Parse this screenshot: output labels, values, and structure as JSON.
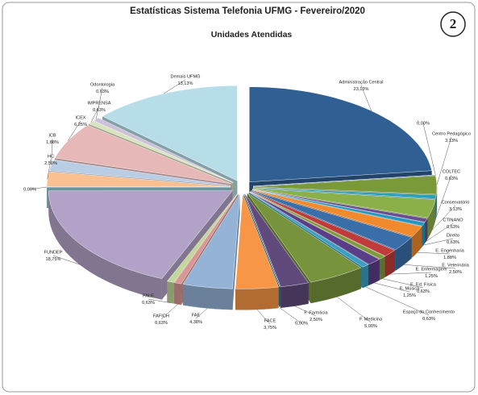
{
  "chart_data": {
    "type": "pie3d",
    "title": "Estatísticas Sistema Telefonia UFMG - Fevereiro/2020",
    "subtitle": "Unidades Atendidas",
    "badge": "2",
    "categories": [
      "Administração Central",
      null,
      "Centro Pedagógico",
      "COLTEC",
      "Conservatório",
      "CTINANO",
      "Direito",
      "E. Engenharia",
      "E. Veterinária",
      "E. Enfermagem",
      "E. Ed. Física",
      "E. Música",
      "Espaço do Conhecimento",
      "F. Medicina",
      "F. Farmácia",
      null,
      "FACE",
      "FAE",
      "FAFICH",
      "FALE",
      "FUNDEP",
      null,
      "HC",
      "ICB",
      "ICEX",
      "IMPRENSA",
      "Odontologia",
      "Demais UFMG"
    ],
    "values": [
      23.13,
      0,
      3.13,
      0.63,
      3.13,
      0.63,
      0.63,
      1.88,
      2.5,
      1.25,
      0.63,
      1.25,
      0.63,
      5.0,
      2.5,
      0,
      3.75,
      4.38,
      0.63,
      0.63,
      18.75,
      0,
      2.5,
      1.88,
      6.25,
      0.63,
      0.63,
      13.13
    ],
    "value_labels": [
      "23,13%",
      "0,00%",
      "3,13%",
      "0,63%",
      "3,13%",
      "0,63%",
      "0,63%",
      "1,88%",
      "2,50%",
      "1,25%",
      "0,63%",
      "1,25%",
      "0,63%",
      "5,00%",
      "2,50%",
      "0,00%",
      "3,75%",
      "4,38%",
      "0,63%",
      "0,63%",
      "18,75%",
      "0,00%",
      "2,50%",
      "1,88%",
      "6,25%",
      "0,63%",
      "0,63%",
      "13,13%"
    ],
    "colors": [
      "#2f5f93",
      "#4f81bd",
      "#7a9a3a",
      "#2aa0b8",
      "#8bb04a",
      "#6a4c92",
      "#2596be",
      "#f08a2c",
      "#3a6ea8",
      "#c03c3a",
      "#7f9c3c",
      "#5a3f88",
      "#3ba0c0",
      "#77933c",
      "#604a7b",
      "#31859c",
      "#f79646",
      "#95b3d7",
      "#d99694",
      "#c3d69b",
      "#b3a2c7",
      "#93cddd",
      "#fac090",
      "#b9cde5",
      "#e6b9b8",
      "#d7e4bd",
      "#ccc1da",
      "#b7dee8"
    ]
  }
}
